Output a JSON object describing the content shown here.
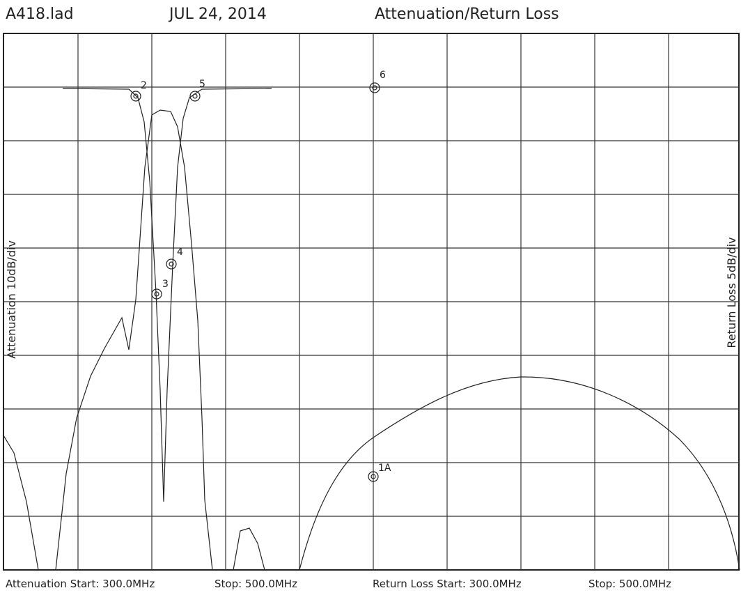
{
  "header": {
    "file": "A418.lad",
    "date": "JUL 24, 2014",
    "title": "Attenuation/Return Loss"
  },
  "axes": {
    "left": "Attenuation 10dB/div",
    "right": "Return Loss 5dB/div"
  },
  "markers": [
    "2",
    "5",
    "6",
    "3",
    "4",
    "1A"
  ],
  "footer": {
    "att_start": "Attenuation Start: 300.0MHz",
    "att_stop": "Stop: 500.0MHz",
    "rl_start": "Return Loss Start: 300.0MHz",
    "rl_stop": "Stop: 500.0MHz"
  }
}
